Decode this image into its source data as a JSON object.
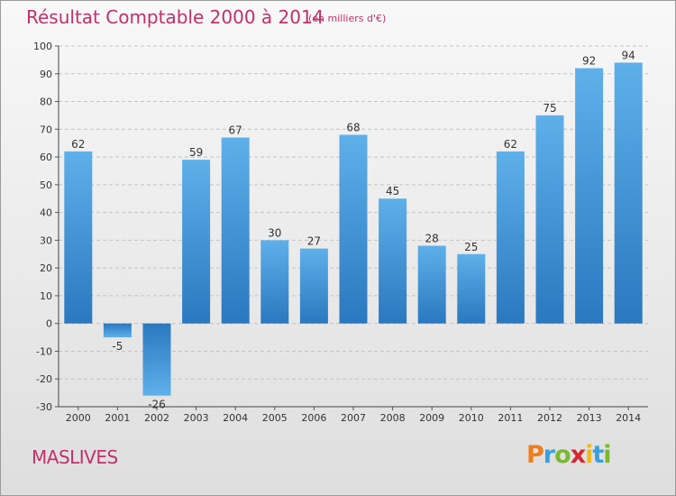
{
  "chart_data": {
    "type": "bar",
    "title": "Résultat Comptable 2000 à 2014",
    "subtitle": "(en milliers d'€)",
    "categories": [
      "2000",
      "2001",
      "2002",
      "2003",
      "2004",
      "2005",
      "2006",
      "2007",
      "2008",
      "2009",
      "2010",
      "2011",
      "2012",
      "2013",
      "2014"
    ],
    "values": [
      62,
      -5,
      -26,
      59,
      67,
      30,
      27,
      68,
      45,
      28,
      25,
      62,
      75,
      92,
      94
    ],
    "ylim": [
      -30,
      100
    ],
    "yticks": [
      -30,
      -20,
      -10,
      0,
      10,
      20,
      30,
      40,
      50,
      60,
      70,
      80,
      90,
      100
    ],
    "grid": true,
    "bar_color": "#3d8fd6"
  },
  "footer": {
    "commune": "MASLIVES",
    "brand_letters": [
      "P",
      "r",
      "o",
      "x",
      "i",
      "t",
      "i"
    ],
    "brand_colors": [
      "#ef7d1a",
      "#3aa0dc",
      "#7ab830",
      "#d6262e",
      "#f2b91c",
      "#3aa0dc",
      "#7ab830"
    ]
  }
}
